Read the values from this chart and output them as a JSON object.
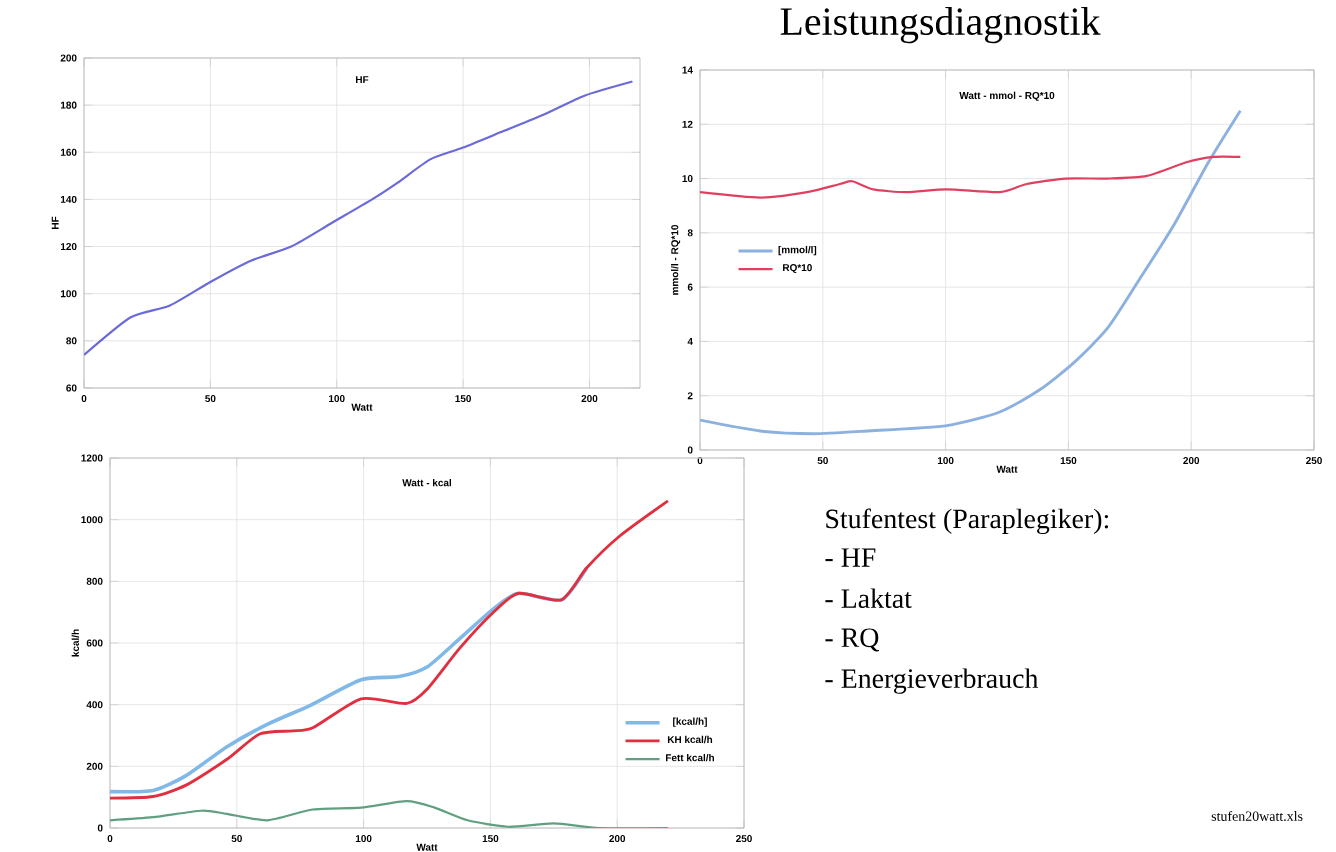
{
  "chart_data": [
    {
      "type": "line",
      "title": "HF",
      "xlabel": "Watt",
      "ylabel": "HF",
      "xlim": [
        0,
        220
      ],
      "xticks": [
        0,
        50,
        100,
        150,
        200
      ],
      "ylim": [
        60,
        200
      ],
      "yticks": [
        60,
        80,
        100,
        120,
        140,
        160,
        180,
        200
      ],
      "grid": true,
      "legend": false,
      "series": [
        {
          "color": "#6a6ad8",
          "x": [
            0,
            18.5,
            34,
            50,
            66,
            82,
            98,
            114,
            124,
            137,
            150,
            166,
            182,
            198,
            217
          ],
          "values": [
            74,
            90,
            95,
            105,
            114,
            120,
            130,
            140,
            147,
            157,
            162,
            169,
            176,
            184,
            190
          ]
        }
      ]
    },
    {
      "type": "line",
      "title": "Watt - mmol - RQ*10",
      "xlabel": "Watt",
      "ylabel": "mmol/l - RQ*10",
      "xlim": [
        0,
        250
      ],
      "xticks": [
        0,
        50,
        100,
        150,
        200,
        250
      ],
      "ylim": [
        0,
        14
      ],
      "yticks": [
        0,
        2,
        4,
        6,
        8,
        10,
        12,
        14
      ],
      "grid": true,
      "legend": "left",
      "series": [
        {
          "name": "[mmol/l]",
          "color": "#8cb0e0",
          "x": [
            0,
            24.5,
            46,
            68,
            100.5,
            122,
            138,
            152,
            166,
            179,
            193,
            207,
            220
          ],
          "values": [
            1.1,
            0.7,
            0.6,
            0.7,
            0.9,
            1.4,
            2.2,
            3.2,
            4.5,
            6.3,
            8.3,
            10.6,
            12.5
          ]
        },
        {
          "name": "RQ*10",
          "color": "#e04060",
          "x": [
            0,
            24.5,
            43.5,
            57,
            62,
            70.6,
            84,
            100.5,
            122,
            133,
            149,
            166,
            182,
            198,
            209,
            220
          ],
          "values": [
            9.5,
            9.3,
            9.5,
            9.8,
            9.9,
            9.6,
            9.5,
            9.6,
            9.5,
            9.8,
            10,
            10,
            10.1,
            10.6,
            10.8,
            10.8
          ]
        }
      ]
    },
    {
      "type": "line",
      "title": "Watt - kcal",
      "xlabel": "Watt",
      "ylabel": "kcal/h",
      "xlim": [
        0,
        250
      ],
      "xticks": [
        0,
        50,
        100,
        150,
        200,
        250
      ],
      "ylim": [
        0,
        1200
      ],
      "yticks": [
        0,
        200,
        400,
        600,
        800,
        1000,
        1200
      ],
      "grid": true,
      "legend": "bottom right",
      "series": [
        {
          "name": "[kcal/h]",
          "color": "#80b8e8",
          "x": [
            0,
            17,
            30,
            46,
            62,
            79,
            99,
            114,
            125,
            138,
            151,
            161,
            178,
            188
          ],
          "values": [
            118,
            122,
            170,
            263,
            336,
            398,
            481,
            491,
            522,
            615,
            709,
            761,
            740,
            844
          ]
        },
        {
          "name": "KH kcal/h",
          "color": "#e03040",
          "x": [
            0,
            17,
            30,
            46,
            59,
            72,
            80,
            99,
            117,
            125,
            138,
            151,
            161,
            178,
            188,
            201,
            220
          ],
          "values": [
            97,
            102,
            139,
            222,
            305,
            315,
            325,
            419,
            404,
            450,
            584,
            698,
            761,
            740,
            844,
            947,
            1061
          ]
        },
        {
          "name": "Fett kcal/h",
          "color": "#60a080",
          "x": [
            0,
            17,
            36,
            46,
            62,
            80,
            99,
            117,
            128,
            141,
            157,
            175,
            193,
            220
          ],
          "values": [
            25,
            35,
            56,
            46,
            25,
            60,
            66,
            87,
            66,
            25,
            4,
            15,
            0,
            0
          ]
        }
      ]
    },
    {
      "type": "other",
      "title": "Leistungsdiagnostik",
      "annotations": [
        "Stufentest (Paraplegiker):",
        "- HF",
        "- Laktat",
        "- RQ",
        "- Energieverbrauch",
        "stufen20watt.xls"
      ]
    }
  ]
}
